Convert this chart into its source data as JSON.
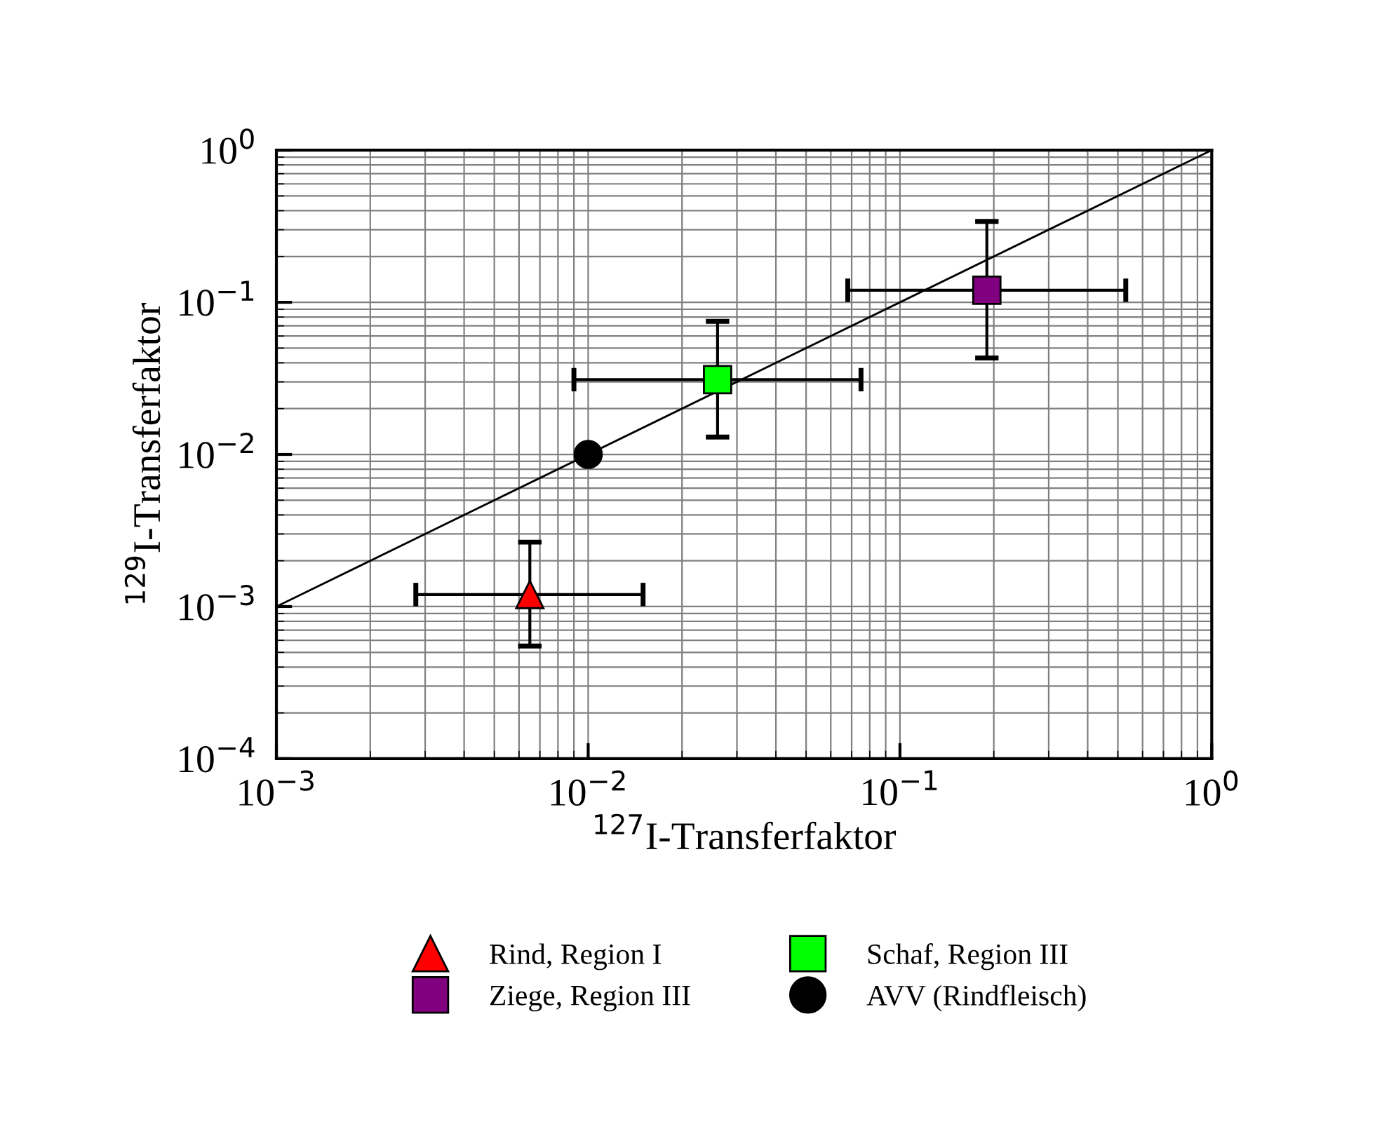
{
  "chart_data": {
    "type": "scatter",
    "xlabel": "$^{127}$I-Transferfaktor",
    "ylabel": "$^{129}$I-Transferfaktor",
    "log": "xy",
    "grid": true,
    "legend": "bottom",
    "xlim": [
      0.001,
      1
    ],
    "ylim": [
      0.0001,
      1
    ],
    "xticks": [
      {
        "value": 0.001,
        "label": "10$^{−3}$"
      },
      {
        "value": 0.01,
        "label": "10$^{−2}$"
      },
      {
        "value": 0.1,
        "label": "10$^{−1}$"
      },
      {
        "value": 1,
        "label": "10$^{0}$"
      }
    ],
    "yticks": [
      {
        "value": 0.0001,
        "label": "10$^{−4}$"
      },
      {
        "value": 0.001,
        "label": "10$^{−3}$"
      },
      {
        "value": 0.01,
        "label": "10$^{−2}$"
      },
      {
        "value": 0.1,
        "label": "10$^{−1}$"
      },
      {
        "value": 1,
        "label": "10$^{0}$"
      }
    ],
    "series": [
      {
        "type": "line",
        "x": [
          0.001,
          1
        ],
        "values": [
          0.001,
          1
        ],
        "color": "#000000",
        "marker": "none",
        "line_style": "solid"
      },
      {
        "name": "Rind, Region I",
        "color": "#ff0000",
        "marker": "triangle",
        "x": [
          0.0065
        ],
        "values": [
          0.0012
        ],
        "errors": [
          [
            0.00055,
            0.00265
          ]
        ],
        "xerrors": [
          [
            0.0028,
            0.015
          ]
        ]
      },
      {
        "name": "Ziege, Region III",
        "color": "#800080",
        "marker": "square",
        "x": [
          0.19
        ],
        "values": [
          0.12
        ],
        "errors": [
          [
            0.043,
            0.34
          ]
        ],
        "xerrors": [
          [
            0.068,
            0.53
          ]
        ]
      },
      {
        "name": "Schaf, Region III",
        "color": "#00ff00",
        "marker": "square",
        "x": [
          0.026
        ],
        "values": [
          0.031
        ],
        "errors": [
          [
            0.013,
            0.075
          ]
        ],
        "xerrors": [
          [
            0.009,
            0.075
          ]
        ]
      },
      {
        "name": "AVV (Rindfleisch)",
        "color": "#000000",
        "marker": "circle",
        "x": [
          0.01
        ],
        "values": [
          0.01
        ]
      }
    ]
  }
}
